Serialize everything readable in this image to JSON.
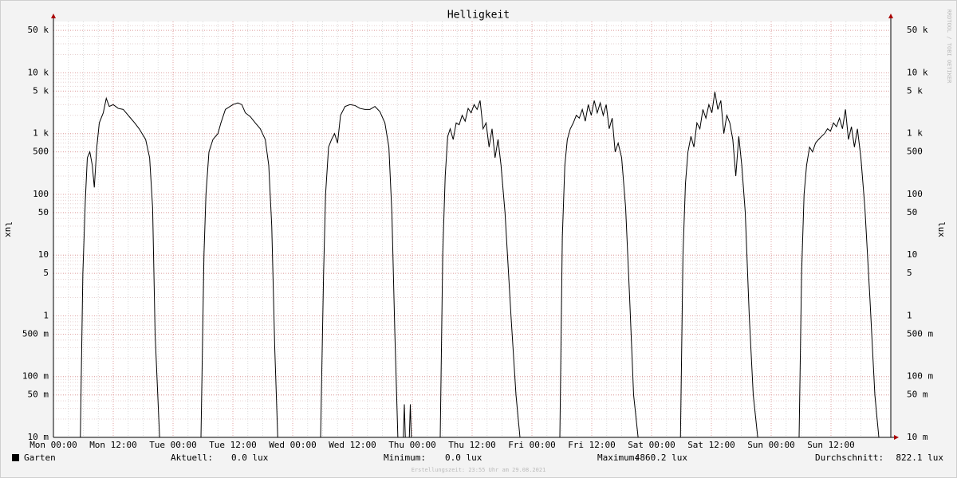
{
  "chart_data": {
    "type": "line",
    "title": "Helligkeit",
    "y_label": "lux",
    "watermark": "RRDTOOL / TOBI OETIKER",
    "footer": "Erstellungszeit: 23:55 Uhr am 29.08.2021",
    "log_scale": true,
    "grid": true,
    "xlim": [
      0,
      168
    ],
    "xticks": [
      {
        "value": 0,
        "label": "Mon 00:00"
      },
      {
        "value": 12,
        "label": "Mon 12:00"
      },
      {
        "value": 24,
        "label": "Tue 00:00"
      },
      {
        "value": 36,
        "label": "Tue 12:00"
      },
      {
        "value": 48,
        "label": "Wed 00:00"
      },
      {
        "value": 60,
        "label": "Wed 12:00"
      },
      {
        "value": 72,
        "label": "Thu 00:00"
      },
      {
        "value": 84,
        "label": "Thu 12:00"
      },
      {
        "value": 96,
        "label": "Fri 00:00"
      },
      {
        "value": 108,
        "label": "Fri 12:00"
      },
      {
        "value": 120,
        "label": "Sat 00:00"
      },
      {
        "value": 132,
        "label": "Sat 12:00"
      },
      {
        "value": 144,
        "label": "Sun 00:00"
      },
      {
        "value": 156,
        "label": "Sun 12:00"
      }
    ],
    "ylim": [
      0.01,
      70000
    ],
    "yticks": [
      {
        "value": 0.01,
        "label": "10 m"
      },
      {
        "value": 0.05,
        "label": "50 m"
      },
      {
        "value": 0.1,
        "label": "100 m"
      },
      {
        "value": 0.5,
        "label": "500 m"
      },
      1,
      5,
      10,
      50,
      100,
      500,
      {
        "value": 1000,
        "label": "1 k"
      },
      {
        "value": 5000,
        "label": "5 k"
      },
      {
        "value": 10000,
        "label": "10 k"
      },
      {
        "value": 50000,
        "label": "50 k"
      }
    ],
    "x": [
      5.4,
      5.9,
      6.4,
      6.8,
      7.3,
      7.8,
      8.2,
      8.7,
      9.2,
      10,
      10.6,
      11.2,
      12,
      13,
      14,
      15,
      16.3,
      17.2,
      18.5,
      19.3,
      19.9,
      20.4,
      21.3,
      24,
      29.6,
      30.2,
      30.6,
      31.2,
      32,
      33,
      33.6,
      34.5,
      36,
      37,
      37.8,
      38.5,
      39.5,
      40.5,
      41.5,
      42.5,
      43.2,
      43.8,
      44.4,
      45,
      48,
      53.6,
      54.2,
      54.6,
      55.2,
      55.8,
      56.4,
      57,
      57.6,
      58.5,
      59.5,
      60.5,
      61.5,
      62.5,
      63.5,
      64.5,
      65.5,
      66.5,
      67.3,
      67.9,
      68.5,
      69.1,
      69.5,
      70.2,
      70.4,
      70.6,
      71.4,
      71.6,
      71.8,
      72,
      77.6,
      78.1,
      78.6,
      79.1,
      79.6,
      80.2,
      80.8,
      81.4,
      82,
      82.6,
      83.2,
      83.8,
      84.4,
      85,
      85.6,
      86.2,
      86.8,
      87.4,
      88,
      88.6,
      89.2,
      89.8,
      90.6,
      91.8,
      92.8,
      93.6,
      96,
      101.6,
      102.1,
      102.6,
      103.1,
      103.7,
      104.3,
      104.9,
      105.5,
      106.1,
      106.7,
      107.3,
      107.9,
      108.5,
      109.1,
      109.7,
      110.3,
      110.9,
      111.5,
      112.1,
      112.7,
      113.3,
      114,
      114.8,
      115.6,
      116.4,
      117.3,
      120,
      125.8,
      126.3,
      126.8,
      127.3,
      127.9,
      128.5,
      129.1,
      129.7,
      130.3,
      130.9,
      131.5,
      132.1,
      132.7,
      133.3,
      133.9,
      134.5,
      135.1,
      135.7,
      136.3,
      136.9,
      137.5,
      138.1,
      138.8,
      139.6,
      140.4,
      141.3,
      144,
      149.6,
      150.1,
      150.6,
      151.1,
      151.7,
      152.3,
      152.9,
      153.5,
      154.1,
      154.7,
      155.3,
      155.9,
      156.5,
      157.1,
      157.7,
      158.3,
      158.9,
      159.5,
      160.1,
      160.7,
      161.3,
      162,
      162.8,
      163.8,
      164.8,
      165.6
    ],
    "series": [
      {
        "name": "Garten",
        "color": "#000000",
        "values": [
          0.01,
          5,
          80,
          400,
          500,
          300,
          130,
          600,
          1500,
          2200,
          3800,
          2800,
          3000,
          2600,
          2500,
          2000,
          1500,
          1200,
          800,
          400,
          60,
          0.5,
          0.01,
          null,
          0.01,
          10,
          100,
          500,
          800,
          1000,
          1500,
          2500,
          3000,
          3200,
          3000,
          2200,
          1900,
          1500,
          1200,
          800,
          300,
          30,
          0.3,
          0.01,
          null,
          0.01,
          5,
          100,
          600,
          800,
          1000,
          700,
          2000,
          2800,
          3000,
          2900,
          2600,
          2500,
          2500,
          2800,
          2300,
          1500,
          600,
          50,
          0.5,
          0.01,
          null,
          0.01,
          0.035,
          0.01,
          0.01,
          0.035,
          0.01,
          null,
          0.01,
          10,
          200,
          900,
          1200,
          800,
          1500,
          1400,
          2000,
          1600,
          2600,
          2200,
          3000,
          2500,
          3500,
          1200,
          1500,
          600,
          1200,
          400,
          800,
          300,
          50,
          1,
          0.05,
          0.01,
          null,
          0.01,
          20,
          300,
          800,
          1200,
          1500,
          2000,
          1800,
          2500,
          1600,
          3000,
          2000,
          3500,
          2200,
          3200,
          2000,
          3000,
          1200,
          1800,
          500,
          700,
          400,
          60,
          2,
          0.05,
          0.01,
          null,
          0.01,
          10,
          150,
          500,
          900,
          600,
          1500,
          1200,
          2500,
          1800,
          3000,
          2200,
          4860.2,
          2500,
          3500,
          1000,
          2000,
          1500,
          800,
          200,
          900,
          300,
          50,
          1,
          0.05,
          0.01,
          null,
          0.01,
          5,
          100,
          300,
          600,
          500,
          700,
          800,
          900,
          1000,
          1200,
          1100,
          1500,
          1300,
          1800,
          1200,
          2500,
          800,
          1300,
          600,
          1200,
          400,
          60,
          2,
          0.05,
          0.01
        ]
      }
    ],
    "stats": [
      {
        "label": "Aktuell:",
        "value": "0.0 lux"
      },
      {
        "label": "Minimum:",
        "value": "0.0 lux"
      },
      {
        "label": "Maximum:",
        "value": "4860.2 lux"
      },
      {
        "label": "Durchschnitt:",
        "value": "822.1 lux"
      }
    ]
  }
}
